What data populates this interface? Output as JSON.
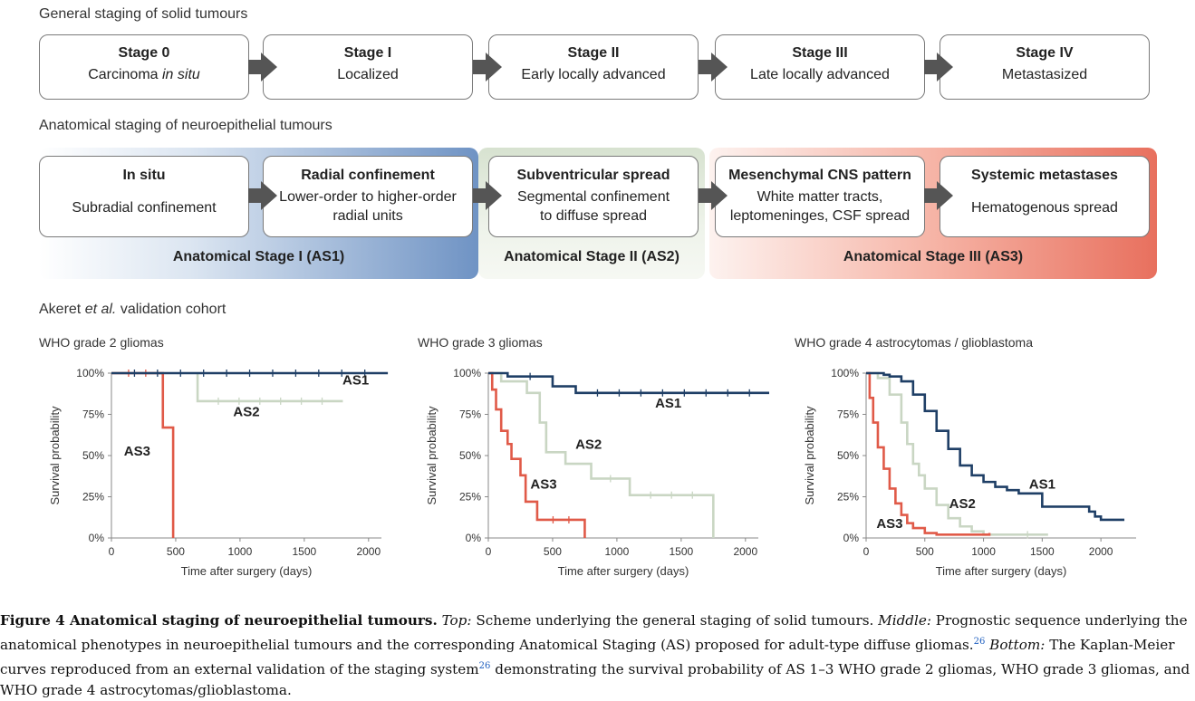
{
  "top": {
    "title": "General staging of solid tumours",
    "stages": [
      {
        "name": "Stage 0",
        "desc_a": "Carcinoma ",
        "desc_i": "in situ"
      },
      {
        "name": "Stage I",
        "desc": "Localized"
      },
      {
        "name": "Stage II",
        "desc": "Early locally advanced"
      },
      {
        "name": "Stage III",
        "desc": "Late locally advanced"
      },
      {
        "name": "Stage IV",
        "desc": "Metastasized"
      }
    ]
  },
  "middle": {
    "title": "Anatomical staging of neuroepithelial tumours",
    "boxes": [
      {
        "name": "In situ",
        "line1": "Subradial confinement",
        "line2": ""
      },
      {
        "name": "Radial confinement",
        "line1": "Lower-order to higher-order",
        "line2": "radial units"
      },
      {
        "name": "Subventricular spread",
        "line1": "Segmental confinement",
        "line2": "to diffuse spread"
      },
      {
        "name": "Mesenchymal CNS pattern",
        "line1": "White matter tracts,",
        "line2": "leptomeninges, CSF spread"
      },
      {
        "name": "Systemic metastases",
        "line1": "Hematogenous spread",
        "line2": ""
      }
    ],
    "bands": [
      "Anatomical Stage I (AS1)",
      "Anatomical Stage II (AS2)",
      "Anatomical Stage III (AS3)"
    ],
    "colors": {
      "as1": "#6f93c4",
      "as2": "#cfdcc8",
      "as3": "#e8705e"
    }
  },
  "bottom": {
    "title_a": "Akeret ",
    "title_i": "et al.",
    "title_b": " validation cohort"
  },
  "chart_data": [
    {
      "type": "line",
      "title": "WHO grade 2 gliomas",
      "xlabel": "Time after surgery (days)",
      "ylabel": "Survival probability",
      "xlim": [
        0,
        2100
      ],
      "ylim": [
        0,
        1
      ],
      "xticks": [
        "0",
        "500",
        "1000",
        "1500",
        "2000"
      ],
      "yticks": [
        "0%",
        "25%",
        "50%",
        "75%",
        "100%"
      ],
      "series": [
        {
          "name": "AS1",
          "color": "#1f3f66",
          "x": [
            0,
            2150
          ],
          "y": [
            1,
            1
          ]
        },
        {
          "name": "AS2",
          "color": "#c9d6c3",
          "x": [
            670,
            670,
            1800
          ],
          "y": [
            1,
            0.83,
            0.83
          ]
        },
        {
          "name": "AS3",
          "color": "#e05a48",
          "x": [
            0,
            400,
            400,
            480,
            480
          ],
          "y": [
            1,
            1,
            0.67,
            0.67,
            0
          ]
        }
      ],
      "labels": [
        {
          "text": "AS1",
          "x": 1900,
          "y": 0.93
        },
        {
          "text": "AS2",
          "x": 1050,
          "y": 0.74
        },
        {
          "text": "AS3",
          "x": 200,
          "y": 0.5
        }
      ]
    },
    {
      "type": "line",
      "title": "WHO grade 3 gliomas",
      "xlabel": "Time after surgery (days)",
      "ylabel": "Survival probability",
      "xlim": [
        0,
        2100
      ],
      "ylim": [
        0,
        1
      ],
      "xticks": [
        "0",
        "500",
        "1000",
        "1500",
        "2000"
      ],
      "yticks": [
        "0%",
        "25%",
        "50%",
        "75%",
        "100%"
      ],
      "series": [
        {
          "name": "AS1",
          "color": "#1f3f66",
          "x": [
            0,
            150,
            150,
            500,
            500,
            680,
            680,
            2200
          ],
          "y": [
            1,
            1,
            0.98,
            0.98,
            0.92,
            0.92,
            0.88,
            0.88
          ]
        },
        {
          "name": "AS2",
          "color": "#c9d6c3",
          "x": [
            0,
            100,
            100,
            300,
            300,
            400,
            400,
            450,
            450,
            600,
            600,
            800,
            800,
            1100,
            1100,
            1750,
            1750
          ],
          "y": [
            1,
            1,
            0.95,
            0.95,
            0.88,
            0.88,
            0.7,
            0.7,
            0.52,
            0.52,
            0.45,
            0.45,
            0.36,
            0.36,
            0.26,
            0.26,
            0
          ]
        },
        {
          "name": "AS3",
          "color": "#e05a48",
          "x": [
            0,
            30,
            30,
            60,
            60,
            100,
            100,
            150,
            150,
            180,
            180,
            250,
            250,
            290,
            290,
            380,
            380,
            750,
            750
          ],
          "y": [
            1,
            1,
            0.9,
            0.9,
            0.78,
            0.78,
            0.65,
            0.65,
            0.57,
            0.57,
            0.48,
            0.48,
            0.38,
            0.38,
            0.22,
            0.22,
            0.11,
            0.11,
            0
          ]
        }
      ],
      "labels": [
        {
          "text": "AS1",
          "x": 1400,
          "y": 0.79
        },
        {
          "text": "AS2",
          "x": 780,
          "y": 0.54
        },
        {
          "text": "AS3",
          "x": 430,
          "y": 0.3
        }
      ]
    },
    {
      "type": "line",
      "title": "WHO grade 4 astrocytomas / glioblastoma",
      "xlabel": "Time after surgery (days)",
      "ylabel": "Survival probability",
      "xlim": [
        0,
        2300
      ],
      "ylim": [
        0,
        1
      ],
      "xticks": [
        "0",
        "500",
        "1000",
        "1500",
        "2000"
      ],
      "yticks": [
        "0%",
        "25%",
        "50%",
        "75%",
        "100%"
      ],
      "series": [
        {
          "name": "AS1",
          "color": "#1f3f66",
          "x": [
            0,
            100,
            150,
            200,
            300,
            400,
            500,
            600,
            700,
            800,
            900,
            1000,
            1100,
            1200,
            1300,
            1500,
            1700,
            1900,
            1950,
            2000,
            2200
          ],
          "y": [
            1,
            1,
            0.99,
            0.98,
            0.95,
            0.87,
            0.77,
            0.65,
            0.54,
            0.44,
            0.38,
            0.34,
            0.31,
            0.29,
            0.27,
            0.19,
            0.19,
            0.16,
            0.13,
            0.11,
            0.11
          ]
        },
        {
          "name": "AS2",
          "color": "#c9d6c3",
          "x": [
            0,
            100,
            200,
            300,
            350,
            400,
            450,
            500,
            600,
            700,
            800,
            900,
            1000,
            1200,
            1550
          ],
          "y": [
            1,
            0.97,
            0.87,
            0.7,
            0.57,
            0.45,
            0.38,
            0.3,
            0.2,
            0.12,
            0.07,
            0.04,
            0.02,
            0.02,
            0.02
          ]
        },
        {
          "name": "AS3",
          "color": "#e05a48",
          "x": [
            0,
            30,
            60,
            100,
            150,
            200,
            250,
            300,
            350,
            400,
            500,
            600,
            700,
            1050
          ],
          "y": [
            1,
            0.85,
            0.7,
            0.55,
            0.42,
            0.3,
            0.21,
            0.14,
            0.09,
            0.06,
            0.03,
            0.02,
            0.02,
            0.03
          ]
        }
      ],
      "labels": [
        {
          "text": "AS1",
          "x": 1500,
          "y": 0.3
        },
        {
          "text": "AS2",
          "x": 820,
          "y": 0.18
        },
        {
          "text": "AS3",
          "x": 200,
          "y": 0.06
        }
      ]
    }
  ],
  "caption": {
    "label": "Figure 4  Anatomical staging of neuroepithelial tumours.",
    "top_i": "Top:",
    "top_t": " Scheme underlying the general staging of solid tumours. ",
    "mid_i": "Middle:",
    "mid_t": " Prognostic sequence underlying the anatomical phenotypes in neuroepithelial tumours and the corresponding Anatomical Staging (AS) proposed for adult-type diffuse gliomas.",
    "ref": "26",
    "bot_i": " Bottom:",
    "bot_t": " The Kaplan-Meier curves reproduced from an external validation of the staging system",
    "ref2": "26",
    "end_t": " demonstrating the survival probability of AS 1–3 WHO grade 2 gliomas, WHO grade 3 gliomas, and WHO grade 4 astrocytomas/glioblastoma."
  }
}
